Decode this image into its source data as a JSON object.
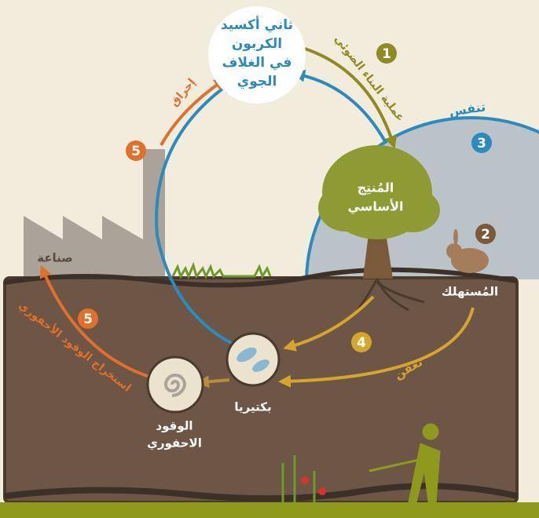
{
  "atmosphere": [
    "ثاني أكسيد",
    "الكربون",
    "في الغلاف",
    "الجوي"
  ],
  "photosynthesis": {
    "number": 1,
    "label": "عملية البناء الضوئي"
  },
  "respiration": {
    "number": 3,
    "label": "تنفس"
  },
  "producer": [
    "المُنتِج",
    "الأساسي"
  ],
  "consumer": {
    "number": 2,
    "label": "المُستهلك"
  },
  "decomposition": {
    "number": 4,
    "label": "تعفن"
  },
  "bacteria": "بكتيريا",
  "fossil_fuel": [
    "الوقود",
    "الاحفوري"
  ],
  "extraction": {
    "number": 5,
    "label": "استخراج الوقود الأحفوري"
  },
  "industry": "صناعة",
  "combustion": {
    "number": 5,
    "label": "إحراق"
  }
}
